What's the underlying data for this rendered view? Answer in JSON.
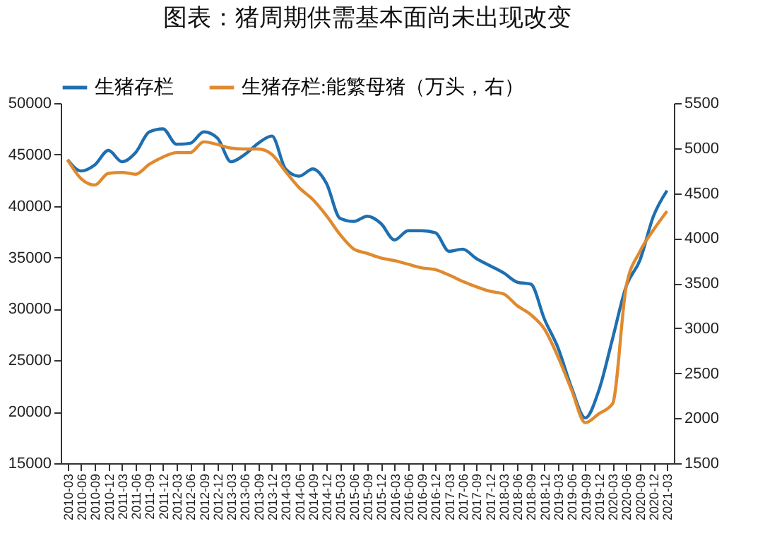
{
  "chart_data": {
    "type": "line",
    "title": "图表：猪周期供需基本面尚未出现改变",
    "categories": [
      "2010-03",
      "2010-06",
      "2010-09",
      "2010-12",
      "2011-03",
      "2011-06",
      "2011-09",
      "2011-12",
      "2012-03",
      "2012-06",
      "2012-09",
      "2012-12",
      "2013-03",
      "2013-06",
      "2013-09",
      "2013-12",
      "2014-03",
      "2014-06",
      "2014-09",
      "2014-12",
      "2015-03",
      "2015-06",
      "2015-09",
      "2015-12",
      "2016-03",
      "2016-06",
      "2016-09",
      "2016-12",
      "2017-03",
      "2017-06",
      "2017-09",
      "2017-12",
      "2018-03",
      "2018-06",
      "2018-09",
      "2018-12",
      "2019-03",
      "2019-06",
      "2019-09",
      "2019-12",
      "2020-03",
      "2020-06",
      "2020-09",
      "2020-12",
      "2021-03"
    ],
    "series": [
      {
        "name": "生猪存栏",
        "color": "#1f6fb0",
        "values": [
          44500,
          43400,
          44000,
          45400,
          44300,
          45200,
          47200,
          47500,
          46000,
          46100,
          47200,
          46600,
          44300,
          45000,
          46100,
          46800,
          43600,
          42900,
          43600,
          42200,
          38800,
          38500,
          39000,
          38300,
          36700,
          37600,
          37600,
          37400,
          35600,
          35800,
          34900,
          34200,
          33500,
          32600,
          32400,
          29000,
          26200,
          22300,
          19400,
          22100,
          27100,
          32200,
          34700,
          39000,
          41500
        ]
      },
      {
        "name": "生猪存栏:能繁母猪（万头，右）",
        "color": "#e08a2e",
        "axis": "y2",
        "values": [
          4870,
          4660,
          4590,
          4720,
          4730,
          4710,
          4820,
          4900,
          4950,
          4950,
          5070,
          5040,
          5000,
          4990,
          4990,
          4930,
          4740,
          4560,
          4430,
          4250,
          4040,
          3880,
          3830,
          3780,
          3750,
          3710,
          3670,
          3650,
          3590,
          3520,
          3460,
          3410,
          3380,
          3250,
          3150,
          2990,
          2680,
          2310,
          1950,
          2050,
          2160,
          3460,
          3850,
          4090,
          4300
        ]
      }
    ],
    "ylim": [
      15000,
      50000
    ],
    "yticks": [
      15000,
      20000,
      25000,
      30000,
      35000,
      40000,
      45000,
      50000
    ],
    "y2lim": [
      1500,
      5500
    ],
    "y2ticks": [
      1500,
      2000,
      2500,
      3000,
      3500,
      4000,
      4500,
      5000,
      5500
    ],
    "legend": "top"
  }
}
